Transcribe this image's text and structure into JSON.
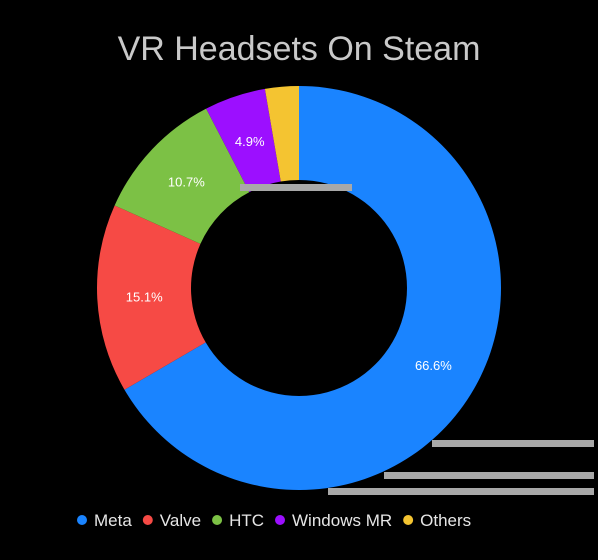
{
  "chart_data": {
    "type": "pie",
    "title": "VR Headsets On Steam",
    "donut": true,
    "categories": [
      "Meta",
      "Valve",
      "HTC",
      "Windows MR",
      "Others"
    ],
    "values": [
      66.6,
      15.1,
      10.7,
      4.9,
      2.7
    ],
    "value_labels": [
      "66.6%",
      "15.1%",
      "10.7%",
      "4.9%",
      ""
    ],
    "colors": [
      "#1a84ff",
      "#f64a45",
      "#7cc145",
      "#9c0fff",
      "#f4c431"
    ],
    "legend_position": "bottom"
  }
}
